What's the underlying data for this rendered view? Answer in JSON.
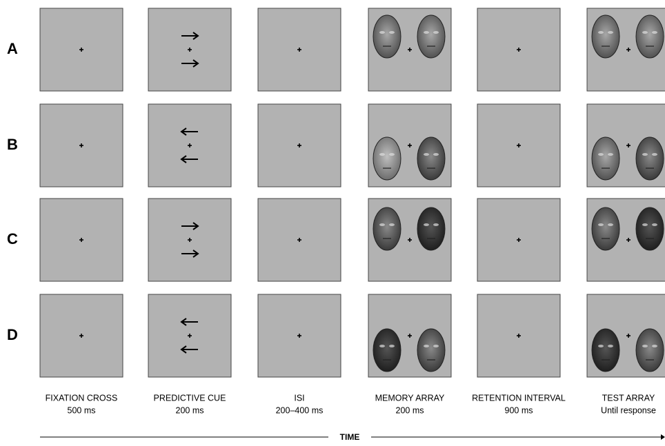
{
  "rows": [
    "A",
    "B",
    "C",
    "D"
  ],
  "columns": [
    {
      "name": "FIXATION CROSS",
      "duration": "500 ms"
    },
    {
      "name": "PREDICTIVE CUE",
      "duration": "200 ms"
    },
    {
      "name": "ISI",
      "duration": "200–400 ms"
    },
    {
      "name": "MEMORY ARRAY",
      "duration": "200 ms"
    },
    {
      "name": "RETENTION INTERVAL",
      "duration": "900 ms"
    },
    {
      "name": "TEST ARRAY",
      "duration": "Until response"
    }
  ],
  "time_label": "TIME"
}
